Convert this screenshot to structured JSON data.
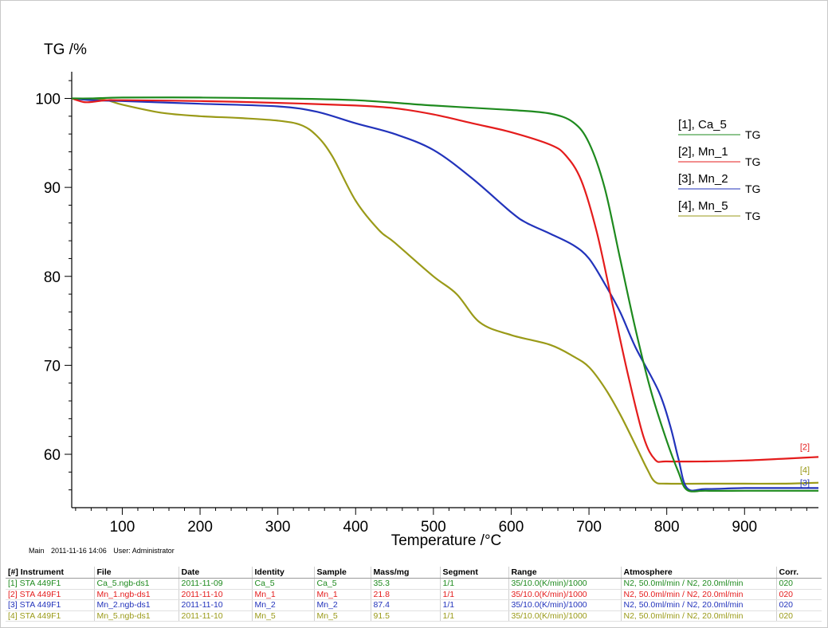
{
  "chart_data": {
    "type": "line",
    "ylabel": "TG /%",
    "xlabel": "Temperature /°C",
    "xlim": [
      35,
      995
    ],
    "ylim": [
      54,
      103
    ],
    "x_ticks": [
      100,
      200,
      300,
      400,
      500,
      600,
      700,
      800,
      900
    ],
    "y_ticks": [
      60,
      70,
      80,
      90,
      100
    ],
    "legend_position": "top-right",
    "legend": [
      {
        "label": "[1], Ca_5",
        "sublabel": "TG",
        "color": "#1e8a1e"
      },
      {
        "label": "[2], Mn_1",
        "sublabel": "TG",
        "color": "#e41c1c"
      },
      {
        "label": "[3], Mn_2",
        "sublabel": "TG",
        "color": "#2233bb"
      },
      {
        "label": "[4], Mn_5",
        "sublabel": "TG",
        "color": "#9a9a18"
      }
    ],
    "series": [
      {
        "name": "[1], Ca_5",
        "tag": "",
        "color": "#1e8a1e",
        "points": [
          [
            35,
            100
          ],
          [
            60,
            100
          ],
          [
            100,
            100.1
          ],
          [
            200,
            100.1
          ],
          [
            300,
            100.0
          ],
          [
            400,
            99.8
          ],
          [
            500,
            99.2
          ],
          [
            600,
            98.7
          ],
          [
            650,
            98.3
          ],
          [
            680,
            97.3
          ],
          [
            700,
            95
          ],
          [
            720,
            90
          ],
          [
            740,
            82
          ],
          [
            760,
            74
          ],
          [
            780,
            67
          ],
          [
            800,
            61.5
          ],
          [
            815,
            58
          ],
          [
            826,
            56
          ],
          [
            850,
            55.9
          ],
          [
            900,
            55.9
          ],
          [
            950,
            55.9
          ],
          [
            995,
            55.9
          ]
        ]
      },
      {
        "name": "[2], Mn_1",
        "tag": "[2]",
        "color": "#e41c1c",
        "points": [
          [
            35,
            100
          ],
          [
            50,
            99.6
          ],
          [
            60,
            99.6
          ],
          [
            80,
            99.8
          ],
          [
            100,
            99.8
          ],
          [
            200,
            99.7
          ],
          [
            300,
            99.5
          ],
          [
            400,
            99.2
          ],
          [
            450,
            98.9
          ],
          [
            500,
            98.2
          ],
          [
            550,
            97.2
          ],
          [
            600,
            96.2
          ],
          [
            650,
            94.8
          ],
          [
            670,
            93.6
          ],
          [
            690,
            90.8
          ],
          [
            710,
            85
          ],
          [
            730,
            77
          ],
          [
            750,
            69
          ],
          [
            770,
            62
          ],
          [
            785,
            59.4
          ],
          [
            800,
            59.2
          ],
          [
            850,
            59.2
          ],
          [
            900,
            59.3
          ],
          [
            950,
            59.5
          ],
          [
            995,
            59.7
          ]
        ]
      },
      {
        "name": "[3], Mn_2",
        "tag": "[3]",
        "color": "#2233bb",
        "points": [
          [
            35,
            100
          ],
          [
            60,
            99.8
          ],
          [
            100,
            99.7
          ],
          [
            200,
            99.4
          ],
          [
            300,
            99.1
          ],
          [
            350,
            98.5
          ],
          [
            400,
            97.2
          ],
          [
            450,
            96.0
          ],
          [
            500,
            94.2
          ],
          [
            550,
            91.0
          ],
          [
            600,
            87.2
          ],
          [
            620,
            86.0
          ],
          [
            650,
            84.8
          ],
          [
            680,
            83.5
          ],
          [
            700,
            82.0
          ],
          [
            720,
            79.2
          ],
          [
            740,
            76
          ],
          [
            760,
            72
          ],
          [
            790,
            67
          ],
          [
            805,
            63
          ],
          [
            815,
            59.5
          ],
          [
            826,
            56.2
          ],
          [
            850,
            56.1
          ],
          [
            900,
            56.2
          ],
          [
            950,
            56.2
          ],
          [
            995,
            56.2
          ]
        ]
      },
      {
        "name": "[4], Mn_5",
        "tag": "[4]",
        "color": "#9a9a18",
        "points": [
          [
            35,
            100
          ],
          [
            60,
            99.9
          ],
          [
            80,
            99.8
          ],
          [
            100,
            99.3
          ],
          [
            150,
            98.4
          ],
          [
            200,
            98.0
          ],
          [
            250,
            97.8
          ],
          [
            300,
            97.5
          ],
          [
            330,
            97.0
          ],
          [
            350,
            95.8
          ],
          [
            370,
            93.5
          ],
          [
            400,
            88.5
          ],
          [
            430,
            85.2
          ],
          [
            450,
            83.8
          ],
          [
            500,
            80.0
          ],
          [
            530,
            78.0
          ],
          [
            560,
            74.8
          ],
          [
            600,
            73.4
          ],
          [
            650,
            72.3
          ],
          [
            680,
            71.0
          ],
          [
            700,
            69.8
          ],
          [
            720,
            67.5
          ],
          [
            740,
            64.5
          ],
          [
            760,
            61
          ],
          [
            775,
            58.3
          ],
          [
            785,
            56.9
          ],
          [
            800,
            56.7
          ],
          [
            850,
            56.7
          ],
          [
            900,
            56.7
          ],
          [
            950,
            56.7
          ],
          [
            995,
            56.8
          ]
        ]
      }
    ]
  },
  "footer": {
    "main": "Main",
    "datetime": "2011-11-16 14:06",
    "user": "User: Administrator"
  },
  "table": {
    "headers": [
      "[#] Instrument",
      "File",
      "Date",
      "Identity",
      "Sample",
      "Mass/mg",
      "Segment",
      "Range",
      "Atmosphere",
      "Corr."
    ],
    "rows": [
      {
        "color": "#1e8a1e",
        "cells": [
          "[1] STA 449F1",
          "Ca_5.ngb-ds1",
          "2011-11-09",
          "Ca_5",
          "Ca_5",
          "35.3",
          "1/1",
          "35/10.0(K/min)/1000",
          "N2, 50.0ml/min / N2, 20.0ml/min",
          "020"
        ]
      },
      {
        "color": "#e41c1c",
        "cells": [
          "[2] STA 449F1",
          "Mn_1.ngb-ds1",
          "2011-11-10",
          "Mn_1",
          "Mn_1",
          "21.8",
          "1/1",
          "35/10.0(K/min)/1000",
          "N2, 50.0ml/min / N2, 20.0ml/min",
          "020"
        ]
      },
      {
        "color": "#2233bb",
        "cells": [
          "[3] STA 449F1",
          "Mn_2.ngb-ds1",
          "2011-11-10",
          "Mn_2",
          "Mn_2",
          "87.4",
          "1/1",
          "35/10.0(K/min)/1000",
          "N2, 50.0ml/min / N2, 20.0ml/min",
          "020"
        ]
      },
      {
        "color": "#9a9a18",
        "cells": [
          "[4] STA 449F1",
          "Mn_5.ngb-ds1",
          "2011-11-10",
          "Mn_5",
          "Mn_5",
          "91.5",
          "1/1",
          "35/10.0(K/min)/1000",
          "N2, 50.0ml/min / N2, 20.0ml/min",
          "020"
        ]
      }
    ]
  }
}
